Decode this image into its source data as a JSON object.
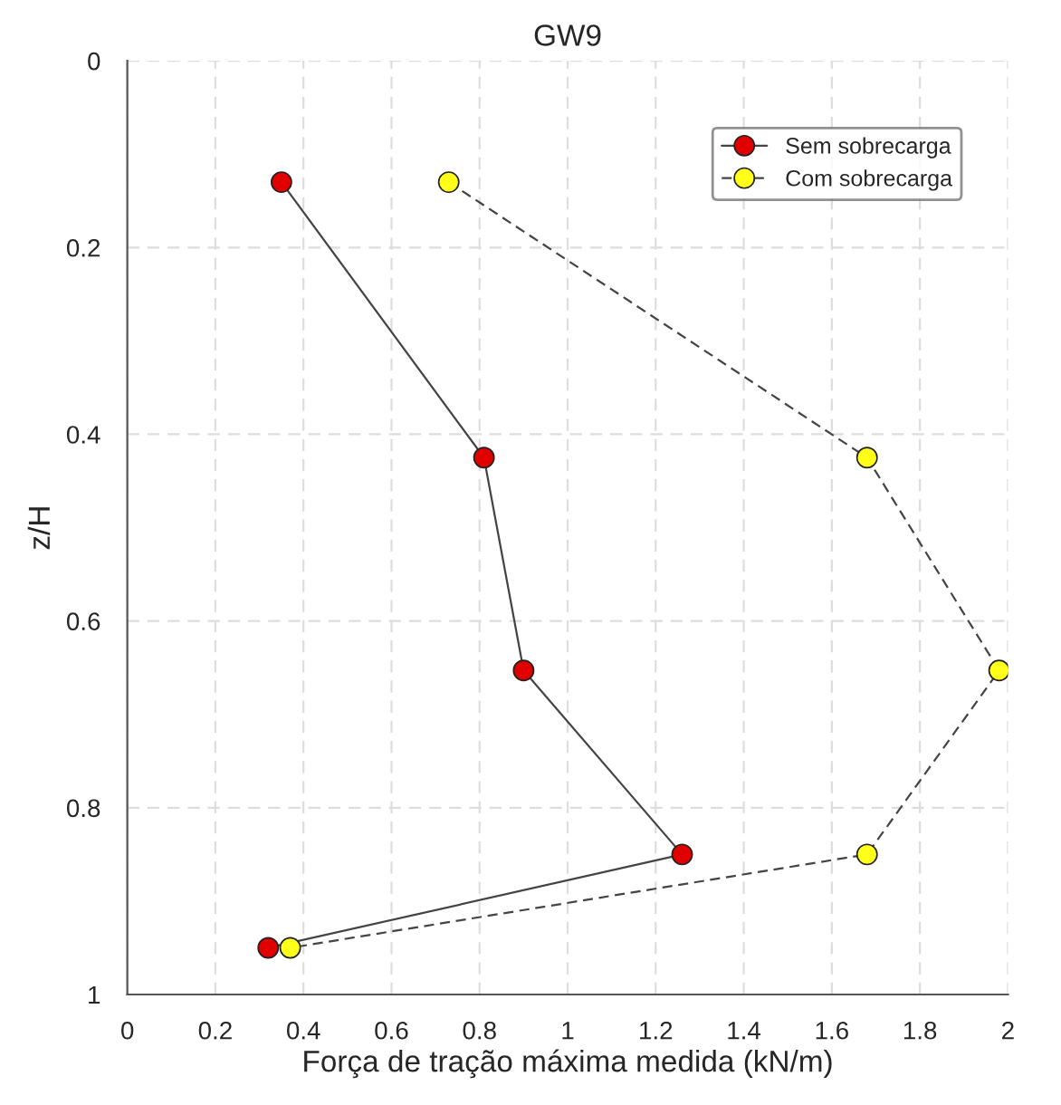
{
  "chart_data": {
    "type": "line",
    "title": "GW9",
    "xlabel": "Força de tração máxima medida (kN/m)",
    "ylabel": "z/H",
    "xlim": [
      0,
      2
    ],
    "xticks": [
      0,
      0.2,
      0.4,
      0.6,
      0.8,
      1,
      1.2,
      1.4,
      1.6,
      1.8,
      2
    ],
    "ylim": [
      1,
      0
    ],
    "yticks": [
      0,
      0.2,
      0.4,
      0.6,
      0.8,
      1
    ],
    "grid": true,
    "legend": "top right",
    "marker": "circle",
    "series": [
      {
        "name": "Sem sobrecarga",
        "color": "#e00000",
        "line_style": "solid",
        "x": [
          0.35,
          0.81,
          0.9,
          1.26,
          0.32
        ],
        "values": [
          0.13,
          0.425,
          0.653,
          0.85,
          0.95
        ]
      },
      {
        "name": "Com sobrecarga",
        "color": "#ffff1a",
        "line_style": "dashed",
        "x": [
          0.73,
          1.68,
          1.98,
          1.68,
          0.37
        ],
        "values": [
          0.13,
          0.425,
          0.653,
          0.85,
          0.95
        ]
      }
    ]
  }
}
